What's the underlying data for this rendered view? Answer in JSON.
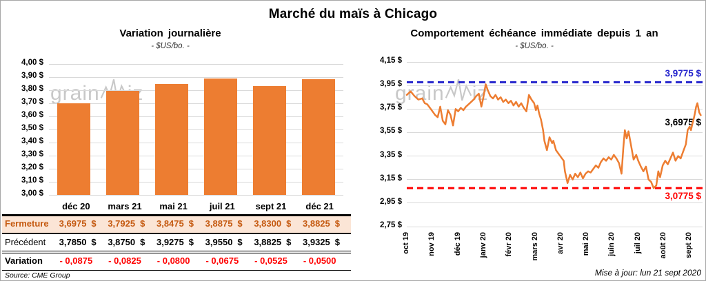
{
  "window": {
    "title": "Marché du maïs à Chicago"
  },
  "colors": {
    "orange": "#ED7D31",
    "grid": "#D9D9D9",
    "row_highlight_bg": "#FBE5D6",
    "row_highlight_text": "#C55A11",
    "negative_red": "#FF0000",
    "high_line_blue": "#2222CC",
    "low_line_red": "#FF0000",
    "watermark_gray": "#C8C8C8",
    "frame_gray": "#A6A6A6",
    "ink": "#000000"
  },
  "left_chart": {
    "title": "Variation journalière",
    "subtitle": "- $US/bo. -",
    "watermark_prefix": "grain",
    "watermark_suffix": "iz"
  },
  "right_chart": {
    "title": "Comportement échéance immédiate depuis 1 an",
    "subtitle": "- $US/bo. -",
    "watermark_prefix": "grain",
    "watermark_suffix": "iz",
    "high_label": "3,9775 $",
    "last_label": "3,6975 $",
    "low_label": "3,0775 $",
    "updated": "Mise à jour: lun 21 sept 2020"
  },
  "table": {
    "col_headers": [
      "déc 20",
      "mars 21",
      "mai 21",
      "juil 21",
      "sept 21",
      "déc 21"
    ],
    "rows": [
      {
        "label": "Fermeture",
        "values": [
          "3,6975",
          "3,7925",
          "3,8475",
          "3,8875",
          "3,8300",
          "3,8825"
        ],
        "unit": "$",
        "style": "highlight"
      },
      {
        "label": "Précédent",
        "values": [
          "3,7850",
          "3,8750",
          "3,9275",
          "3,9550",
          "3,8825",
          "3,9325"
        ],
        "unit": "$",
        "style": "normal"
      },
      {
        "label": "Variation",
        "values": [
          "- 0,0875",
          "- 0,0825",
          "- 0,0800",
          "- 0,0675",
          "- 0,0525",
          "- 0,0500"
        ],
        "unit": "",
        "style": "negative"
      }
    ],
    "source": "Source: CME Group"
  },
  "chart_data": [
    {
      "type": "bar",
      "title": "Variation journalière",
      "subtitle": "- $US/bo. -",
      "categories": [
        "déc 20",
        "mars 21",
        "mai 21",
        "juil 21",
        "sept 21",
        "déc 21"
      ],
      "values": [
        3.6975,
        3.7925,
        3.8475,
        3.8875,
        3.83,
        3.8825
      ],
      "ylim": [
        3.0,
        4.0
      ],
      "ytick_values": [
        4.0,
        3.9,
        3.8,
        3.7,
        3.6,
        3.5,
        3.4,
        3.3,
        3.2,
        3.1,
        3.0
      ],
      "ytick_labels": [
        "4,00 $",
        "3,90 $",
        "3,80 $",
        "3,70 $",
        "3,60 $",
        "3,50 $",
        "3,40 $",
        "3,30 $",
        "3,20 $",
        "3,10 $",
        "3,00 $"
      ],
      "grid": true,
      "legend": false
    },
    {
      "type": "line",
      "title": "Comportement échéance immédiate depuis 1 an",
      "subtitle": "- $US/bo. -",
      "x_tick_labels": [
        "oct 19",
        "nov 19",
        "déc 19",
        "janv 20",
        "févr 20",
        "mars 20",
        "avr 20",
        "mai 20",
        "juin 20",
        "juil 20",
        "août 20",
        "sept 20"
      ],
      "xlim_months": [
        0,
        11.5
      ],
      "ylim": [
        2.75,
        4.15
      ],
      "ytick_values": [
        4.15,
        3.95,
        3.75,
        3.55,
        3.35,
        3.15,
        2.95,
        2.75
      ],
      "ytick_labels": [
        "4,15 $",
        "3,95 $",
        "3,75 $",
        "3,55 $",
        "3,35 $",
        "3,15 $",
        "2,95 $",
        "2,75 $"
      ],
      "grid": true,
      "legend": false,
      "series": [
        {
          "name": "échéance immédiate",
          "x": [
            0,
            0.15,
            0.3,
            0.45,
            0.6,
            0.7,
            0.8,
            0.9,
            1,
            1.1,
            1.2,
            1.3,
            1.4,
            1.5,
            1.6,
            1.7,
            1.8,
            1.9,
            2,
            2.1,
            2.2,
            2.3,
            2.45,
            2.6,
            2.7,
            2.8,
            2.9,
            2.97,
            3.07,
            3.15,
            3.25,
            3.35,
            3.45,
            3.55,
            3.65,
            3.75,
            3.85,
            3.95,
            4.05,
            4.15,
            4.25,
            4.35,
            4.45,
            4.55,
            4.65,
            4.75,
            4.85,
            4.95,
            5.02,
            5.08,
            5.15,
            5.22,
            5.3,
            5.35,
            5.4,
            5.45,
            5.55,
            5.65,
            5.7,
            5.8,
            5.9,
            6,
            6.1,
            6.15,
            6.25,
            6.35,
            6.45,
            6.55,
            6.65,
            6.75,
            6.85,
            6.95,
            7.05,
            7.15,
            7.25,
            7.35,
            7.45,
            7.55,
            7.65,
            7.75,
            7.85,
            7.95,
            8.05,
            8.15,
            8.25,
            8.35,
            8.42,
            8.48,
            8.55,
            8.62,
            8.72,
            8.82,
            8.92,
            9,
            9.1,
            9.2,
            9.3,
            9.4,
            9.5,
            9.6,
            9.7,
            9.78,
            9.85,
            9.95,
            10.05,
            10.15,
            10.25,
            10.35,
            10.45,
            10.55,
            10.65,
            10.75,
            10.85,
            10.92,
            11,
            11.05,
            11.1,
            11.15,
            11.2,
            11.25,
            11.3,
            11.37,
            11.43
          ],
          "y": [
            3.87,
            3.9,
            3.86,
            3.83,
            3.84,
            3.8,
            3.79,
            3.76,
            3.73,
            3.7,
            3.68,
            3.77,
            3.65,
            3.62,
            3.74,
            3.7,
            3.61,
            3.75,
            3.73,
            3.76,
            3.74,
            3.77,
            3.8,
            3.83,
            3.86,
            3.88,
            3.77,
            3.84,
            3.96,
            3.91,
            3.86,
            3.84,
            3.87,
            3.83,
            3.85,
            3.81,
            3.83,
            3.8,
            3.82,
            3.78,
            3.81,
            3.77,
            3.8,
            3.76,
            3.73,
            3.87,
            3.83,
            3.8,
            3.74,
            3.78,
            3.71,
            3.66,
            3.57,
            3.48,
            3.44,
            3.4,
            3.51,
            3.46,
            3.48,
            3.4,
            3.37,
            3.34,
            3.31,
            3.22,
            3.12,
            3.19,
            3.15,
            3.2,
            3.17,
            3.21,
            3.16,
            3.2,
            3.22,
            3.21,
            3.24,
            3.27,
            3.25,
            3.3,
            3.33,
            3.31,
            3.34,
            3.32,
            3.36,
            3.33,
            3.29,
            3.2,
            3.42,
            3.57,
            3.5,
            3.56,
            3.44,
            3.32,
            3.36,
            3.31,
            3.26,
            3.22,
            3.26,
            3.15,
            3.13,
            3.0775,
            3.1,
            3.22,
            3.17,
            3.27,
            3.31,
            3.28,
            3.33,
            3.38,
            3.31,
            3.35,
            3.33,
            3.39,
            3.45,
            3.57,
            3.6,
            3.57,
            3.62,
            3.66,
            3.71,
            3.77,
            3.8,
            3.72,
            3.6975
          ]
        }
      ],
      "ref_lines": [
        {
          "value": 3.9775,
          "label": "3,9775 $",
          "color_key": "high_line_blue",
          "style": "dashed"
        },
        {
          "value": 3.0775,
          "label": "3,0775 $",
          "color_key": "low_line_red",
          "style": "dashed"
        }
      ],
      "last_point_label": "3,6975 $",
      "last_value": 3.6975
    }
  ]
}
